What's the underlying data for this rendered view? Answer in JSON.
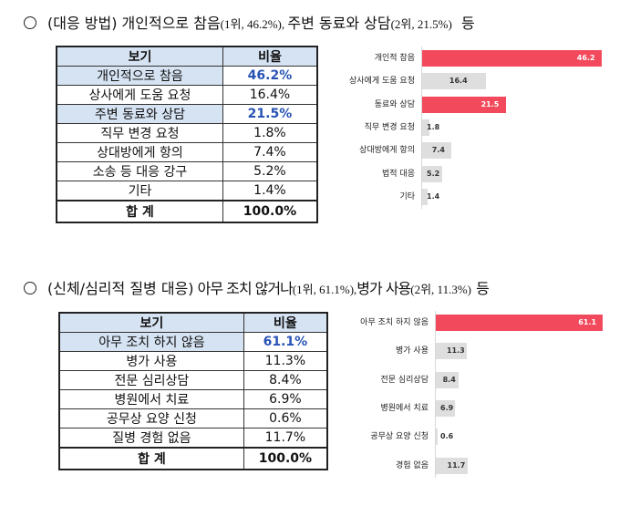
{
  "section1": {
    "heading": {
      "title": "(대응 방법) 개인적으로 참음",
      "rank1": "(1위, 46.2%), ",
      "second": "주변 동료와 상담",
      "rank2": "(2위, 21.5%)",
      "suffix": "등"
    },
    "table": {
      "headers": [
        "보기",
        "비율"
      ],
      "rows": [
        {
          "label": "개인적으로 참음",
          "value": "46.2%"
        },
        {
          "label": "상사에게 도움 요청",
          "value": "16.4%"
        },
        {
          "label": "주변 동료와 상담",
          "value": "21.5%"
        },
        {
          "label": "직무 변경 요청",
          "value": "1.8%"
        },
        {
          "label": "상대방에게 항의",
          "value": "7.4%"
        },
        {
          "label": "소송 등 대응 강구",
          "value": "5.2%"
        },
        {
          "label": "기타",
          "value": "1.4%"
        }
      ],
      "total_label": "합   계",
      "total_value": "100.0%"
    }
  },
  "section2": {
    "heading": {
      "title": "(신체/심리적 질병 대응)",
      "rest": " 아무 조치 않거나",
      "rank1": "(1위, 61.1%),",
      "second": "병가 사용",
      "rank2": "(2위, 11.3%)",
      "suffix": " 등"
    },
    "table": {
      "headers": [
        "보기",
        "비율"
      ],
      "rows": [
        {
          "label": "아무 조치 하지 않음",
          "value": "61.1%"
        },
        {
          "label": "병가 사용",
          "value": "11.3%"
        },
        {
          "label": "전문 심리상담",
          "value": "8.4%"
        },
        {
          "label": "병원에서 치료",
          "value": "6.9%"
        },
        {
          "label": "공무상 요양 신청",
          "value": "0.6%"
        },
        {
          "label": "질병 경험 없음",
          "value": "11.7%"
        }
      ],
      "total_label": "합   계",
      "total_value": "100.0%"
    }
  },
  "chart_data": [
    {
      "type": "bar",
      "orientation": "horizontal",
      "categories": [
        "개인적 참음",
        "상사에게 도움 요청",
        "동료와 상담",
        "직무 변경 요청",
        "상대방에게 항의",
        "법적 대응",
        "기타"
      ],
      "values": [
        46.2,
        16.4,
        21.5,
        1.8,
        7.4,
        5.2,
        1.4
      ],
      "value_labels": [
        "46.2",
        "16.4",
        "21.5",
        "1.8",
        "7.4",
        "5.2",
        "1.4"
      ],
      "highlight": [
        true,
        false,
        true,
        false,
        false,
        false,
        false
      ],
      "xlim": [
        0,
        50
      ],
      "grid": false,
      "colors": {
        "highlight": "#f24a5c",
        "normal": "#dedede"
      }
    },
    {
      "type": "bar",
      "orientation": "horizontal",
      "categories": [
        "아무 조치 하지 않음",
        "병가 사용",
        "전문 심리상담",
        "병원에서 치료",
        "공무상 요양 신청",
        "경험 없음"
      ],
      "values": [
        61.1,
        11.3,
        8.4,
        6.9,
        0.6,
        11.7
      ],
      "value_labels": [
        "61.1",
        "11.3",
        "8.4",
        "6.9",
        "0.6",
        "11.7"
      ],
      "highlight": [
        true,
        false,
        false,
        false,
        false,
        false
      ],
      "xlim": [
        0,
        65
      ],
      "grid": false,
      "colors": {
        "highlight": "#f24a5c",
        "normal": "#dedede"
      }
    }
  ]
}
